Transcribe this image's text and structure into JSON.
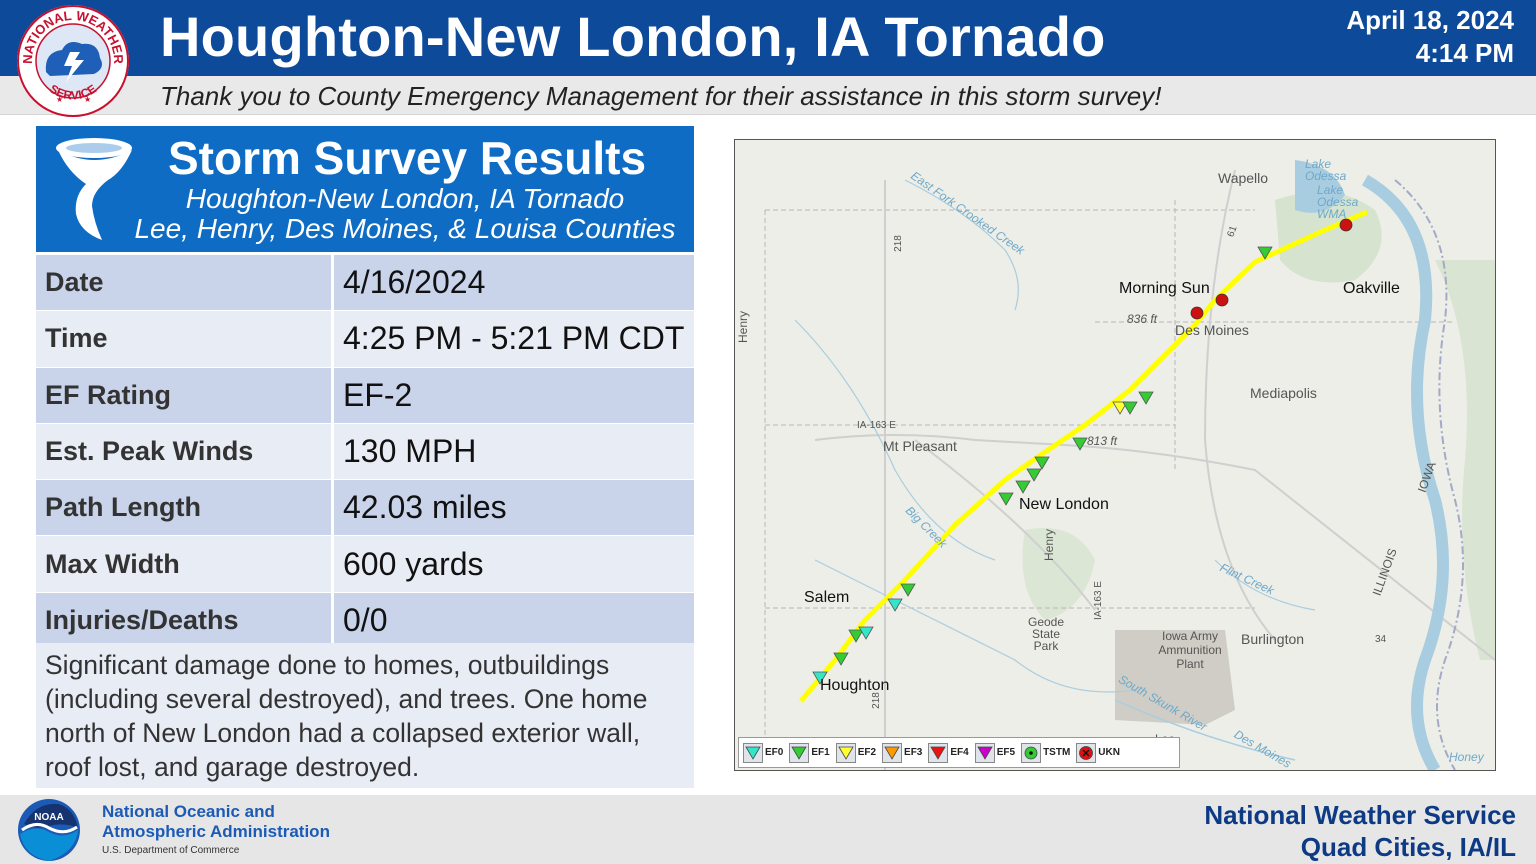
{
  "header": {
    "title": "Houghton-New London, IA Tornado",
    "date": "April 18, 2024",
    "time": "4:14 PM",
    "thanks": "Thank you to County Emergency Management for their assistance in this storm survey!",
    "logo_text_top": "NATIONAL WEATHER",
    "logo_text_right": "SERVICE",
    "logo_text_left": "NATIONAL"
  },
  "card": {
    "title": "Storm Survey Results",
    "subtitle1": "Houghton-New London, IA Tornado",
    "subtitle2": "Lee, Henry, Des Moines, & Louisa Counties"
  },
  "table": [
    {
      "label": "Date",
      "value": "4/16/2024"
    },
    {
      "label": "Time",
      "value": "4:25 PM - 5:21 PM CDT"
    },
    {
      "label": "EF Rating",
      "value": "EF-2"
    },
    {
      "label": "Est. Peak Winds",
      "value": "130 MPH"
    },
    {
      "label": "Path Length",
      "value": "42.03 miles"
    },
    {
      "label": "Max Width",
      "value": "600 yards"
    },
    {
      "label": "Injuries/Deaths",
      "value": "0/0"
    }
  ],
  "description": "Significant damage done to homes, outbuildings (including several destroyed), and trees. One home north of New London had a collapsed exterior wall, roof lost, and garage destroyed.",
  "map": {
    "towns": {
      "wapello": "Wapello",
      "lake_odessa": "Lake Odessa",
      "lake_odessa_wma": "Lake Odessa WMA",
      "morning_sun": "Morning Sun",
      "oakville": "Oakville",
      "mediapolis": "Mediapolis",
      "mt_pleasant": "Mt Pleasant",
      "new_london": "New London",
      "salem": "Salem",
      "houghton": "Houghton",
      "burlington": "Burlington",
      "geode_state_park": "Geode State Park",
      "iowa_army_plant": "Iowa Army Ammunition Plant",
      "henry": "Henry",
      "des_moines": "Des Moines",
      "lee": "Lee",
      "iowa": "IOWA",
      "illinois": "ILLINOIS"
    },
    "elevations": {
      "e836": "836 ft",
      "e813": "813 ft"
    },
    "rivers": {
      "east_fork": "East Fork Crooked Creek",
      "big_creek": "Big Creek",
      "flint_creek": "Flint Creek",
      "skunk": "South Skunk River",
      "des_moines_river": "Des Moines",
      "honey": "Honey"
    },
    "roads": {
      "r218": "218",
      "r218b": "218",
      "r61": "61",
      "ia163": "IA-163 E",
      "ia163b": "IA-163 E",
      "r34": "34"
    },
    "legend": [
      {
        "label": "EF0",
        "color": "#33e6c8"
      },
      {
        "label": "EF1",
        "color": "#33cc33"
      },
      {
        "label": "EF2",
        "color": "#ffff33"
      },
      {
        "label": "EF3",
        "color": "#ff9900"
      },
      {
        "label": "EF4",
        "color": "#ee1111"
      },
      {
        "label": "EF5",
        "color": "#cc00cc"
      },
      {
        "label": "TSTM",
        "color": "#33cc33"
      },
      {
        "label": "UKN",
        "color": "#dd1111"
      }
    ],
    "track_color": "#ffff00"
  },
  "footer": {
    "noaa_line1": "National Oceanic and",
    "noaa_line2": "Atmospheric Administration",
    "noaa_dept": "U.S. Department of Commerce",
    "noaa_logo_text": "NOAA",
    "nws_line1": "National Weather Service",
    "nws_line2": "Quad Cities, IA/IL"
  },
  "colors": {
    "header_bg": "#0d4a9a",
    "card_header_bg": "#0f6cc4",
    "row_dark": "#c9d4eb",
    "row_light": "#e8ecf5"
  }
}
